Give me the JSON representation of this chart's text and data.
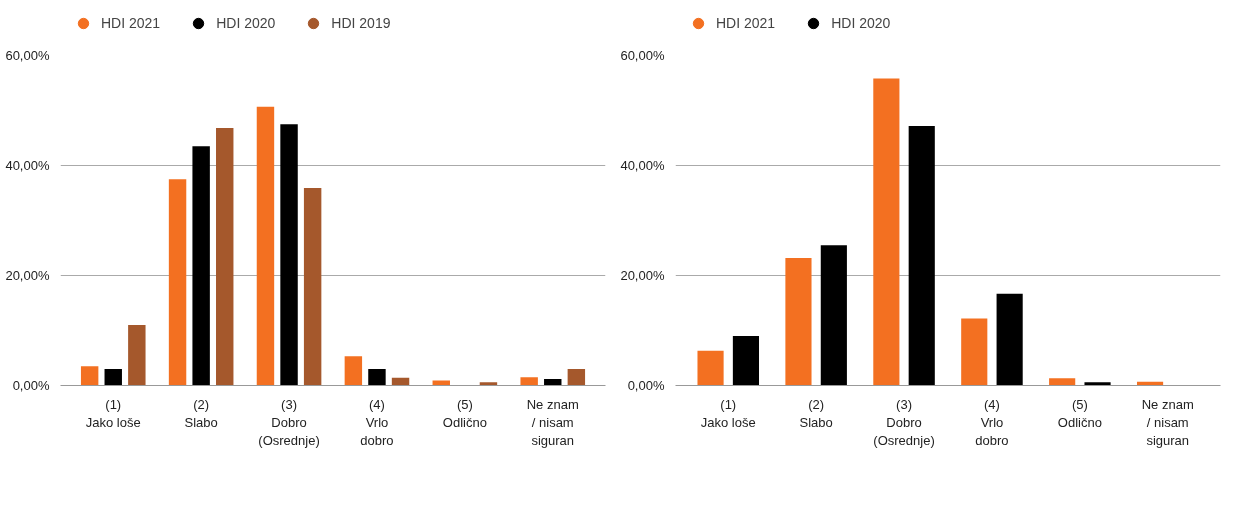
{
  "chart_data": [
    {
      "type": "bar",
      "categories": [
        "(1)\nJako loše",
        "(2)\nSlabo",
        "(3)\nDobro\n(Osrednje)",
        "(4)\nVrlo\ndobro",
        "(5)\nOdlično",
        "Ne znam\n/ nisam\nsiguran"
      ],
      "series": [
        {
          "name": "HDI 2021",
          "color": "#f37021",
          "values": [
            3.5,
            37.5,
            50.7,
            5.3,
            0.9,
            1.5
          ]
        },
        {
          "name": "HDI 2020",
          "color": "#000000",
          "values": [
            3.0,
            43.5,
            47.5,
            3.0,
            0.0,
            1.2
          ]
        },
        {
          "name": "HDI 2019",
          "color": "#a5582c",
          "values": [
            11.0,
            46.8,
            35.9,
            1.4,
            0.6,
            3.0
          ]
        }
      ],
      "ylim": [
        0,
        60
      ],
      "yticks": [
        {
          "value": 0,
          "label": "0,00%"
        },
        {
          "value": 20,
          "label": "20,00%"
        },
        {
          "value": 40,
          "label": "40,00%"
        },
        {
          "value": 60,
          "label": "60,00%"
        }
      ],
      "grid": "y",
      "legend": "top"
    },
    {
      "type": "bar",
      "categories": [
        "(1)\nJako loše",
        "(2)\nSlabo",
        "(3)\nDobro\n(Osrednje)",
        "(4)\nVrlo\ndobro",
        "(5)\nOdlično",
        "Ne znam\n/ nisam\nsiguran"
      ],
      "series": [
        {
          "name": "HDI 2021",
          "color": "#f37021",
          "values": [
            6.3,
            23.2,
            55.8,
            12.2,
            1.3,
            0.7
          ]
        },
        {
          "name": "HDI 2020",
          "color": "#000000",
          "values": [
            9.0,
            25.5,
            47.2,
            16.7,
            0.6,
            0.0
          ]
        }
      ],
      "ylim": [
        0,
        60
      ],
      "yticks": [
        {
          "value": 0,
          "label": "0,00%"
        },
        {
          "value": 20,
          "label": "20,00%"
        },
        {
          "value": 40,
          "label": "40,00%"
        },
        {
          "value": 60,
          "label": "60,00%"
        }
      ],
      "grid": "y",
      "legend": "top"
    }
  ]
}
